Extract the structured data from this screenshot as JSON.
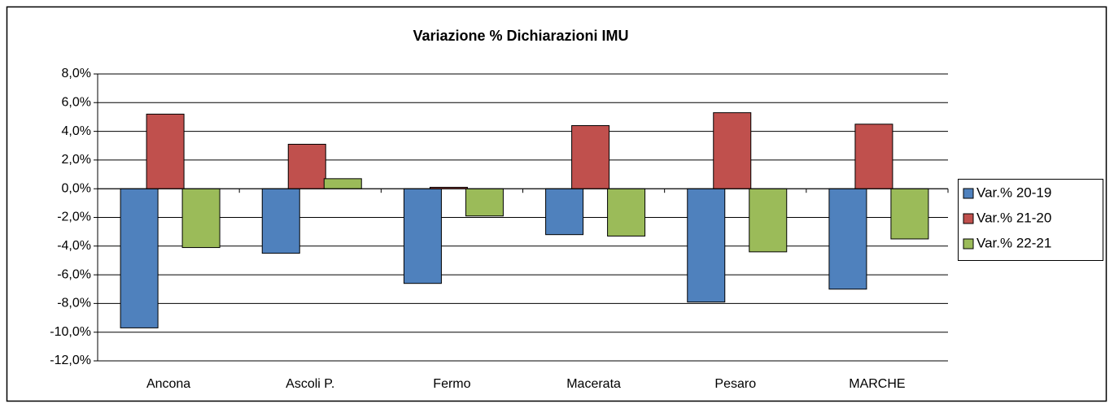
{
  "chart_data": {
    "type": "bar",
    "title": "Variazione % Dichiarazioni IMU",
    "categories": [
      "Ancona",
      "Ascoli P.",
      "Fermo",
      "Macerata",
      "Pesaro",
      "MARCHE"
    ],
    "series": [
      {
        "name": "Var.% 20-19",
        "color": "#4f81bd",
        "values": [
          -9.7,
          -4.5,
          -6.6,
          -3.2,
          -7.9,
          -7.0
        ]
      },
      {
        "name": "Var.% 21-20",
        "color": "#c0504d",
        "values": [
          5.2,
          3.1,
          0.1,
          4.4,
          5.3,
          4.5
        ]
      },
      {
        "name": "Var.% 22-21",
        "color": "#9bbb59",
        "values": [
          -4.1,
          0.7,
          -1.9,
          -3.3,
          -4.4,
          -3.5
        ]
      }
    ],
    "ylim": [
      -12,
      8
    ],
    "yticks": [
      {
        "value": -12,
        "label": "-12,0%"
      },
      {
        "value": -10,
        "label": "-10,0%"
      },
      {
        "value": -8,
        "label": "-8,0%"
      },
      {
        "value": -6,
        "label": "-6,0%"
      },
      {
        "value": -4,
        "label": "-4,0%"
      },
      {
        "value": -2,
        "label": "-2,0%"
      },
      {
        "value": 0,
        "label": "0,0%"
      },
      {
        "value": 2,
        "label": "2,0%"
      },
      {
        "value": 4,
        "label": "4,0%"
      },
      {
        "value": 6,
        "label": "6,0%"
      },
      {
        "value": 8,
        "label": "8,0%"
      }
    ],
    "grid": true,
    "legend": "right"
  }
}
